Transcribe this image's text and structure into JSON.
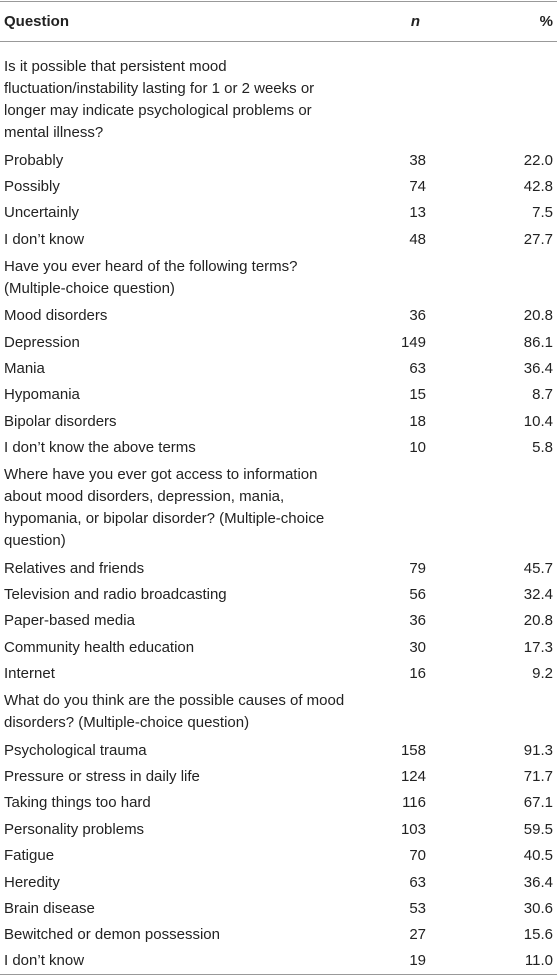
{
  "table": {
    "header": [
      "Question",
      "n",
      "%"
    ],
    "rows": [
      [
        "Is it possible that persistent mood fluctuation/instability lasting for 1 or 2 weeks or longer may indicate psychological problems or mental illness?"
      ],
      [
        "Probably",
        "38",
        "22.0"
      ],
      [
        "Possibly",
        "74",
        "42.8"
      ],
      [
        "Uncertainly",
        "13",
        "7.5"
      ],
      [
        "I don’t know",
        "48",
        "27.7"
      ],
      [
        "Have you ever heard of the following terms? (Multiple-choice question)"
      ],
      [
        "Mood disorders",
        "36",
        "20.8"
      ],
      [
        "Depression",
        "149",
        "86.1"
      ],
      [
        "Mania",
        "63",
        "36.4"
      ],
      [
        "Hypomania",
        "15",
        "8.7"
      ],
      [
        "Bipolar disorders",
        "18",
        "10.4"
      ],
      [
        "I don’t know the above terms",
        "10",
        "5.8"
      ],
      [
        "Where have you ever got access to information about mood disorders, depression, mania, hypomania, or bipolar disorder? (Multiple-choice question)"
      ],
      [
        "Relatives and friends",
        "79",
        "45.7"
      ],
      [
        "Television and radio broadcasting",
        "56",
        "32.4"
      ],
      [
        "Paper-based media",
        "36",
        "20.8"
      ],
      [
        "Community health education",
        "30",
        "17.3"
      ],
      [
        "Internet",
        "16",
        "9.2"
      ],
      [
        "What do you think are the possible causes of mood disorders? (Multiple-choice question)"
      ],
      [
        "Psychological trauma",
        "158",
        "91.3"
      ],
      [
        "Pressure or stress in daily life",
        "124",
        "71.7"
      ],
      [
        "Taking things too hard",
        "116",
        "67.1"
      ],
      [
        "Personality problems",
        "103",
        "59.5"
      ],
      [
        "Fatigue",
        "70",
        "40.5"
      ],
      [
        "Heredity",
        "63",
        "36.4"
      ],
      [
        "Brain disease",
        "53",
        "30.6"
      ],
      [
        "Bewitched or demon possession",
        "27",
        "15.6"
      ],
      [
        "I don’t know",
        "19",
        "11.0"
      ]
    ]
  }
}
